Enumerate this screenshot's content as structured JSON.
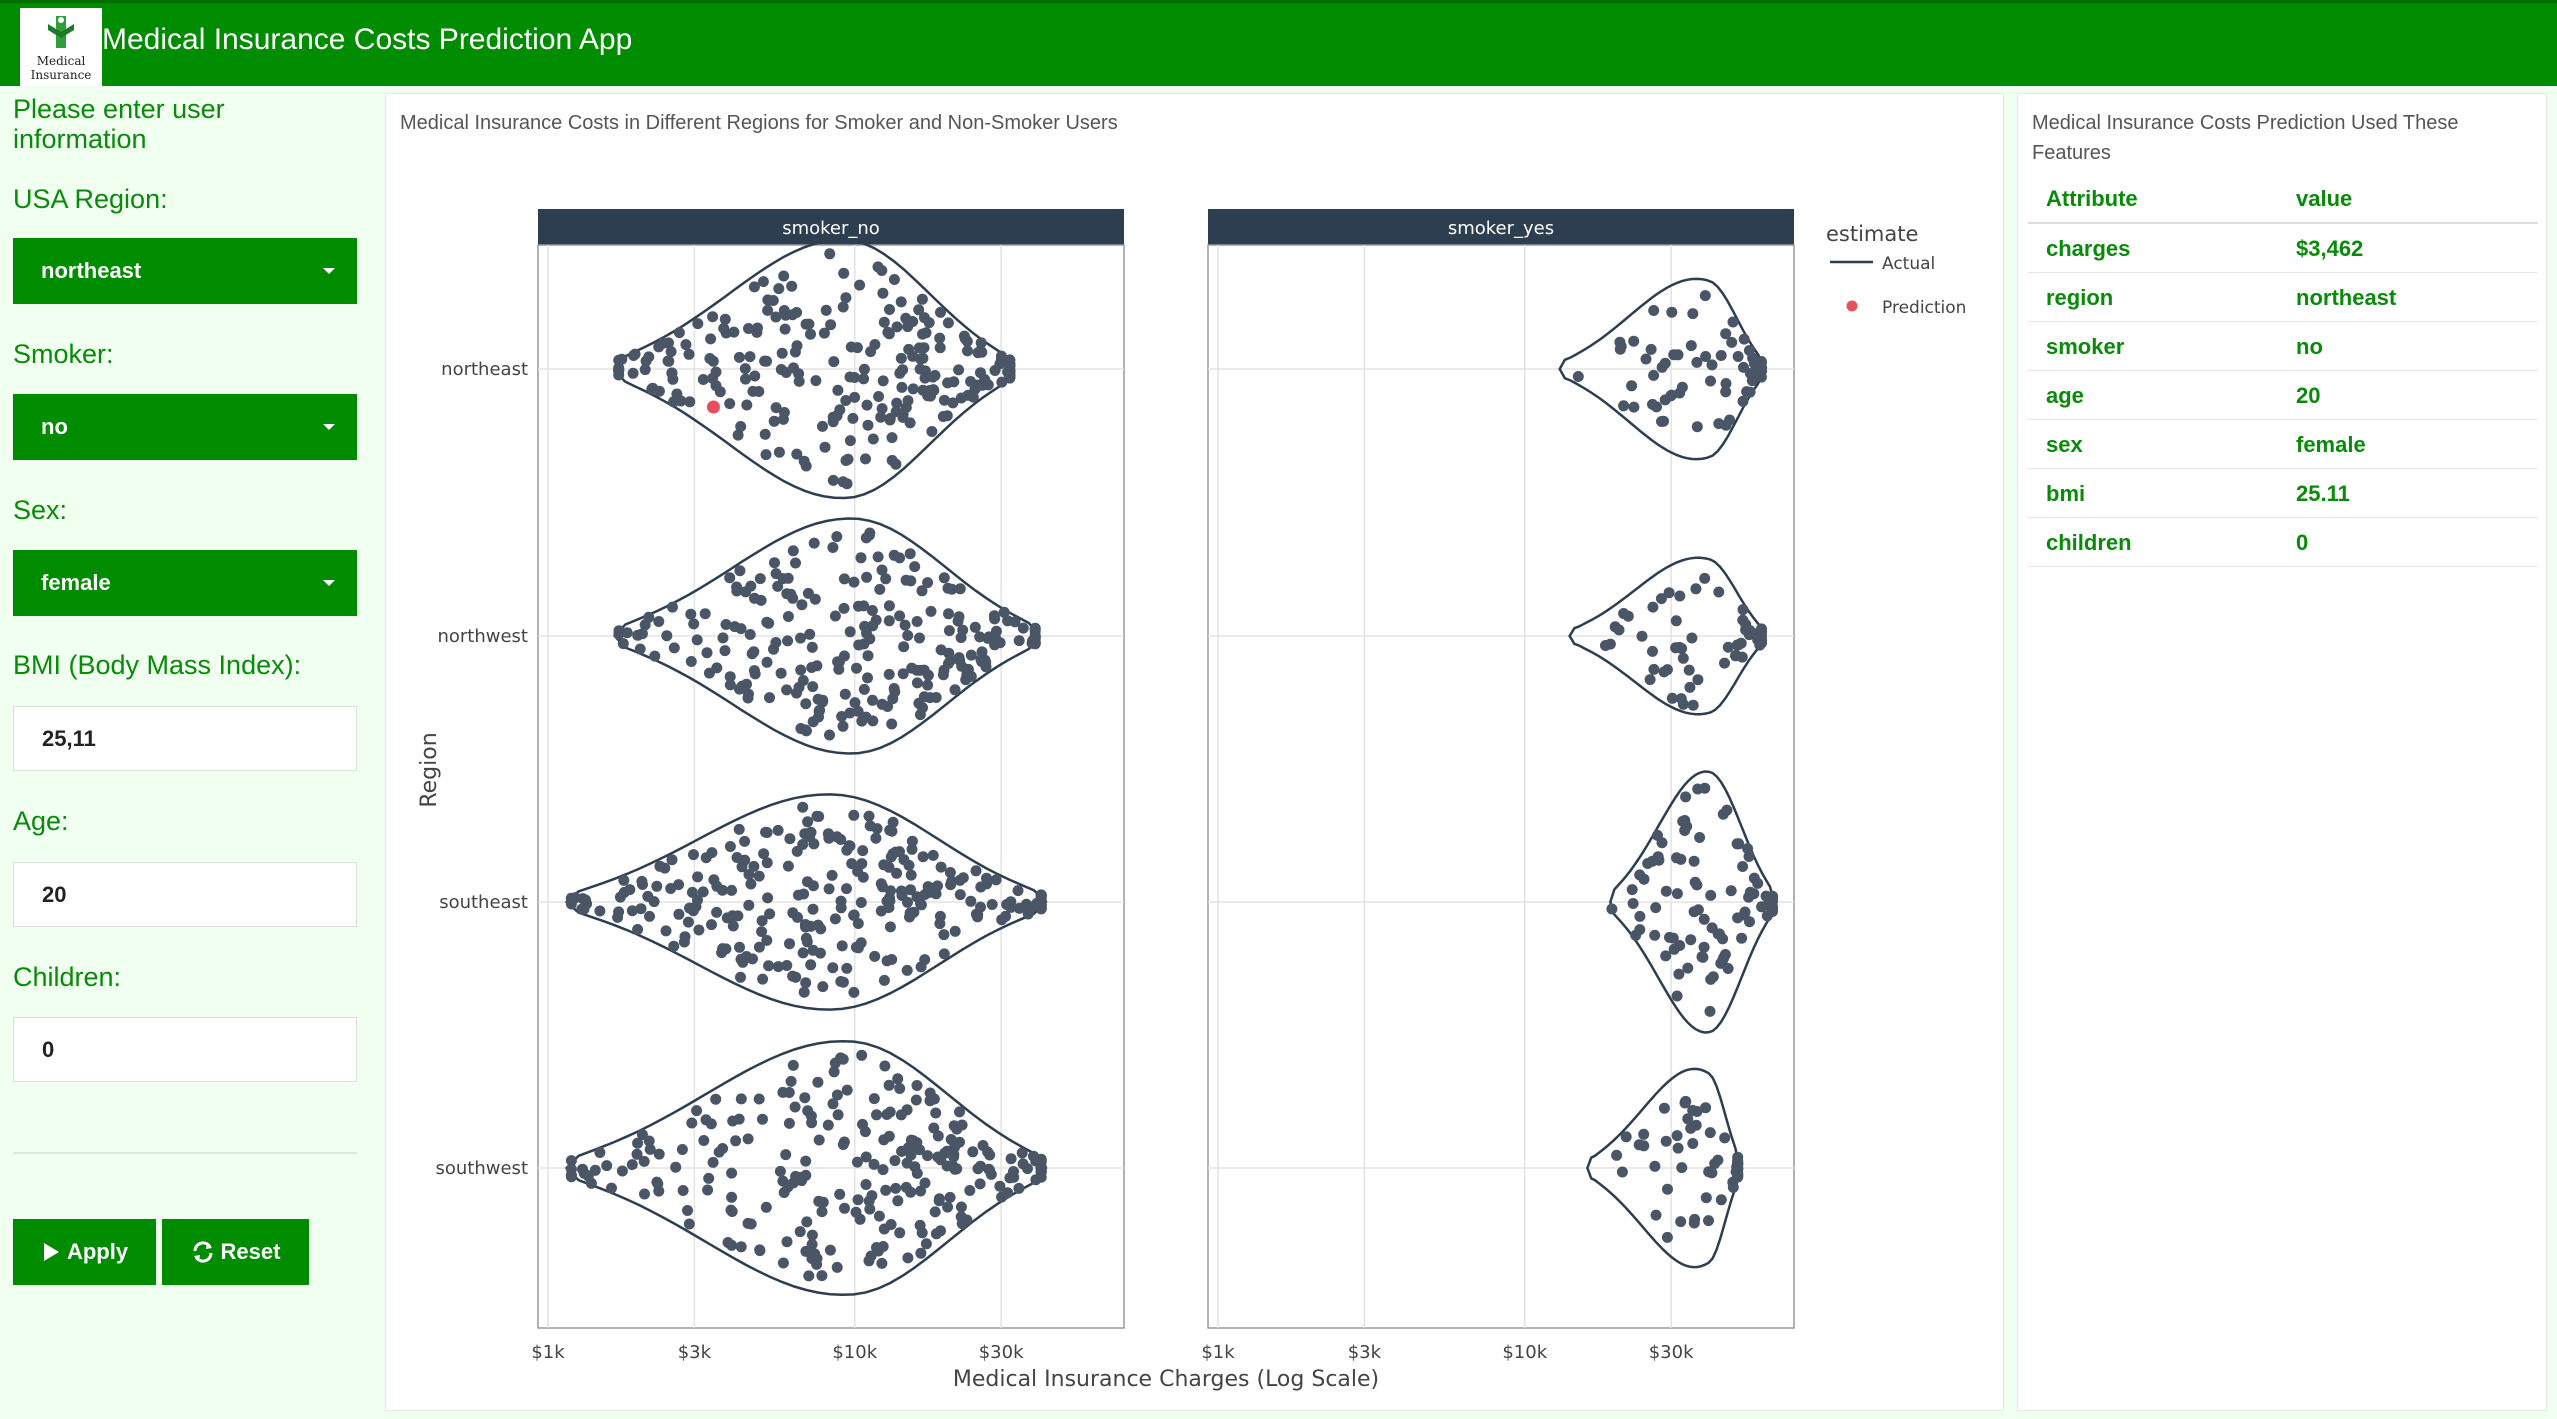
{
  "app": {
    "title": "Medical Insurance Costs Prediction App",
    "logo_text_1": "Medical",
    "logo_text_2": "Insurance"
  },
  "sidebar": {
    "heading": "Please enter user information",
    "region_label": "USA Region:",
    "region_value": "northeast",
    "smoker_label": "Smoker:",
    "smoker_value": "no",
    "sex_label": "Sex:",
    "sex_value": "female",
    "bmi_label": "BMI (Body Mass Index):",
    "bmi_value": "25,11",
    "age_label": "Age:",
    "age_value": "20",
    "children_label": "Children:",
    "children_value": "0",
    "apply_label": "Apply",
    "reset_label": "Reset"
  },
  "chart_panel": {
    "title": "Medical Insurance Costs in Different Regions for Smoker and Non-Smoker Users"
  },
  "chart_data": {
    "type": "scatter",
    "subtype": "violin-beeswarm",
    "title": "Medical Insurance Costs in Different Regions for Smoker and Non-Smoker Users",
    "xlabel": "Medical Insurance Charges (Log Scale)",
    "ylabel": "Region",
    "x_scale": "log",
    "xlim": [
      1000,
      70000
    ],
    "x_ticks": [
      "$1k",
      "$3k",
      "$10k",
      "$30k"
    ],
    "x_tick_values": [
      1000,
      3000,
      10000,
      30000
    ],
    "categories": [
      "northeast",
      "northwest",
      "southeast",
      "southwest"
    ],
    "facets": [
      "smoker_no",
      "smoker_yes"
    ],
    "legend_title": "estimate",
    "legend_items": [
      "Actual",
      "Prediction"
    ],
    "legend_placement": "right",
    "grid": true,
    "colors": {
      "points": "#4a5566",
      "violin": "#2c3e50",
      "prediction": "#e8505b",
      "strip": "#2c3e50"
    },
    "series": [
      {
        "name": "Prediction",
        "facet": "smoker_no",
        "region": "northeast",
        "value": 3462
      }
    ]
  },
  "features_panel": {
    "title": "Medical Insurance Costs Prediction Used These Features",
    "header": [
      "Attribute",
      "value"
    ],
    "rows": [
      [
        "charges",
        "$3,462"
      ],
      [
        "region",
        "northeast"
      ],
      [
        "smoker",
        "no"
      ],
      [
        "age",
        "20"
      ],
      [
        "sex",
        "female"
      ],
      [
        "bmi",
        "25.11"
      ],
      [
        "children",
        "0"
      ]
    ]
  }
}
